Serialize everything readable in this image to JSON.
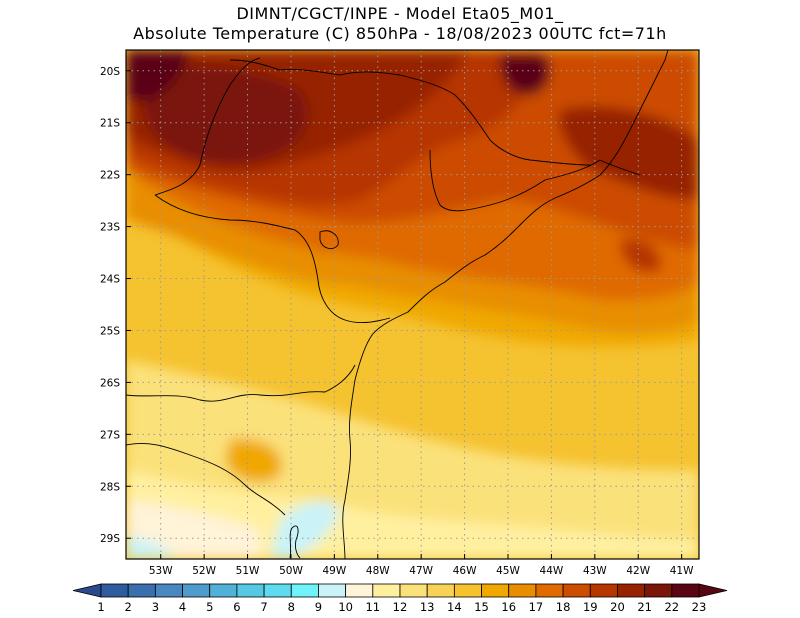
{
  "header": {
    "line1": "DIMNT/CGCT/INPE -  Model Eta05_M01_",
    "line2": "Absolute Temperature (C) 850hPa -  18/08/2023 00UTC fct=71h"
  },
  "axes": {
    "lat_labels": [
      "20S",
      "21S",
      "22S",
      "23S",
      "24S",
      "25S",
      "26S",
      "27S",
      "28S",
      "29S"
    ],
    "lon_labels": [
      "53W",
      "52W",
      "51W",
      "50W",
      "49W",
      "48W",
      "47W",
      "46W",
      "45W",
      "44W",
      "43W",
      "42W",
      "41W"
    ],
    "lat_range": [
      -29.4,
      -19.6
    ],
    "lon_range": [
      -53.8,
      -40.6
    ]
  },
  "colorbar": {
    "values": [
      "1",
      "2",
      "3",
      "4",
      "5",
      "6",
      "7",
      "8",
      "9",
      "10",
      "11",
      "12",
      "13",
      "14",
      "15",
      "16",
      "17",
      "18",
      "19",
      "20",
      "21",
      "22",
      "23"
    ],
    "colors": [
      "#2b4a8e",
      "#2f5c9e",
      "#3a6fae",
      "#4a86c0",
      "#4f9ccc",
      "#50b2d8",
      "#55c8e4",
      "#5edbee",
      "#6ff2fa",
      "#caf3f8",
      "#fff3d8",
      "#fff0a0",
      "#fbe17a",
      "#f8d256",
      "#f5c230",
      "#f0a800",
      "#e88e00",
      "#e06a00",
      "#cc4c00",
      "#b63600",
      "#962200",
      "#7a1708",
      "#5a0612"
    ]
  },
  "map": {
    "description_colors": {
      "hot_dark": "#5a0612",
      "hot": "#7a1708",
      "warm": "#b63600",
      "mid": "#e06a00",
      "mild": "#f0a800",
      "cool": "#fbe17a",
      "cold": "#caf3f8"
    },
    "gridline_color": "#9a9a9a"
  }
}
